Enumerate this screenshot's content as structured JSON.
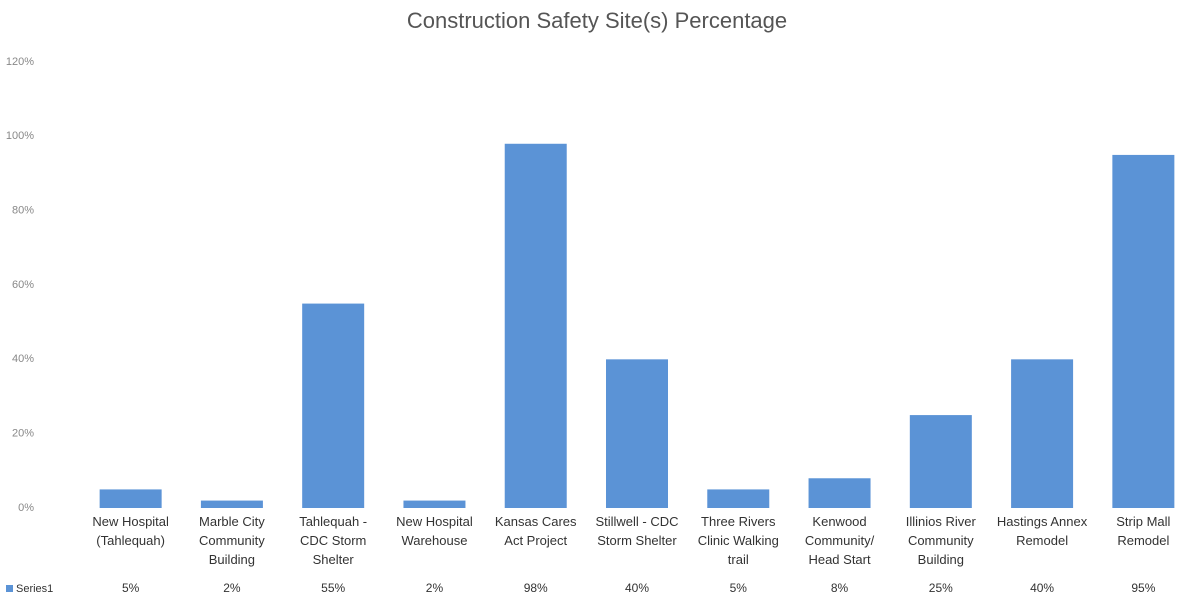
{
  "chart_data": {
    "type": "bar",
    "title": "Construction  Safety Site(s) Percentage",
    "categories": [
      "New Hospital (Tahlequah)",
      "Marble City Community Building",
      "Tahlequah - CDC Storm Shelter",
      "New Hospital Warehouse",
      "Kansas Cares Act Project",
      "Stillwell - CDC Storm Shelter",
      "Three Rivers Clinic Walking trail",
      "Kenwood Community/ Head Start",
      "Illinios River Community Building",
      "Hastings Annex Remodel",
      "Strip Mall Remodel"
    ],
    "series": [
      {
        "name": "Series1",
        "color": "#5b93d6",
        "values": [
          5,
          2,
          55,
          2,
          98,
          40,
          5,
          8,
          25,
          40,
          95
        ],
        "value_labels": [
          "5%",
          "2%",
          "55%",
          "2%",
          "98%",
          "40%",
          "5%",
          "8%",
          "25%",
          "40%",
          "95%"
        ]
      }
    ],
    "ylim": [
      0,
      120
    ],
    "yticks": [
      {
        "value": 0,
        "label": "0%"
      },
      {
        "value": 20,
        "label": "20%"
      },
      {
        "value": 40,
        "label": "40%"
      },
      {
        "value": 60,
        "label": "60%"
      },
      {
        "value": 80,
        "label": "80%"
      },
      {
        "value": 100,
        "label": "100%"
      },
      {
        "value": 120,
        "label": "120%"
      }
    ],
    "grid": false
  }
}
